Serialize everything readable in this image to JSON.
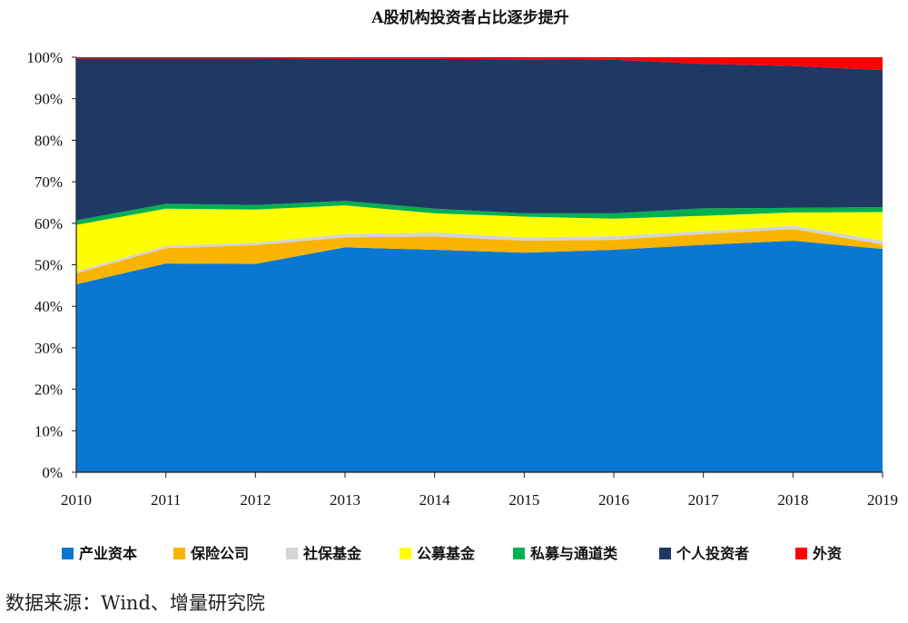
{
  "chart_data": {
    "type": "area",
    "stacked": true,
    "title": "A股机构投资者占比逐步提升",
    "x": [
      "2010",
      "2011",
      "2012",
      "2013",
      "2014",
      "2015",
      "2016",
      "2017",
      "2018",
      "2019"
    ],
    "ylim": [
      0,
      100
    ],
    "yticks": [
      "0%",
      "10%",
      "20%",
      "30%",
      "40%",
      "50%",
      "60%",
      "70%",
      "80%",
      "90%",
      "100%"
    ],
    "grid": false,
    "legend_position": "bottom",
    "series": [
      {
        "name": "产业资本",
        "color": "#0a78d2",
        "values": [
          45.3,
          50.3,
          50.2,
          54.2,
          53.6,
          52.9,
          53.6,
          54.8,
          55.8,
          53.8
        ]
      },
      {
        "name": "保险公司",
        "color": "#f9b400",
        "values": [
          2.6,
          3.7,
          4.5,
          2.4,
          3.2,
          2.9,
          2.4,
          2.6,
          2.8,
          1.1
        ]
      },
      {
        "name": "社保基金",
        "color": "#d4d4d4",
        "values": [
          0.5,
          0.6,
          0.6,
          0.8,
          1.0,
          0.8,
          0.9,
          0.7,
          0.8,
          0.9
        ]
      },
      {
        "name": "公募基金",
        "color": "#ffff00",
        "values": [
          11.2,
          8.9,
          8.0,
          6.9,
          4.6,
          5.0,
          4.2,
          3.7,
          3.2,
          6.9
        ]
      },
      {
        "name": "私募与通道类",
        "color": "#00b050",
        "values": [
          1.1,
          1.2,
          1.1,
          1.1,
          1.1,
          0.8,
          1.3,
          1.8,
          1.1,
          1.2
        ]
      },
      {
        "name": "个人投资者",
        "color": "#1f3864",
        "values": [
          39.0,
          35.0,
          35.3,
          34.2,
          36.1,
          37.1,
          37.0,
          34.8,
          34.2,
          33.0
        ]
      },
      {
        "name": "外资",
        "color": "#ff0000",
        "values": [
          0.3,
          0.3,
          0.3,
          0.4,
          0.4,
          0.5,
          0.6,
          1.6,
          2.1,
          3.1
        ]
      }
    ]
  },
  "source_note": "数据来源：Wind、增量研究院"
}
